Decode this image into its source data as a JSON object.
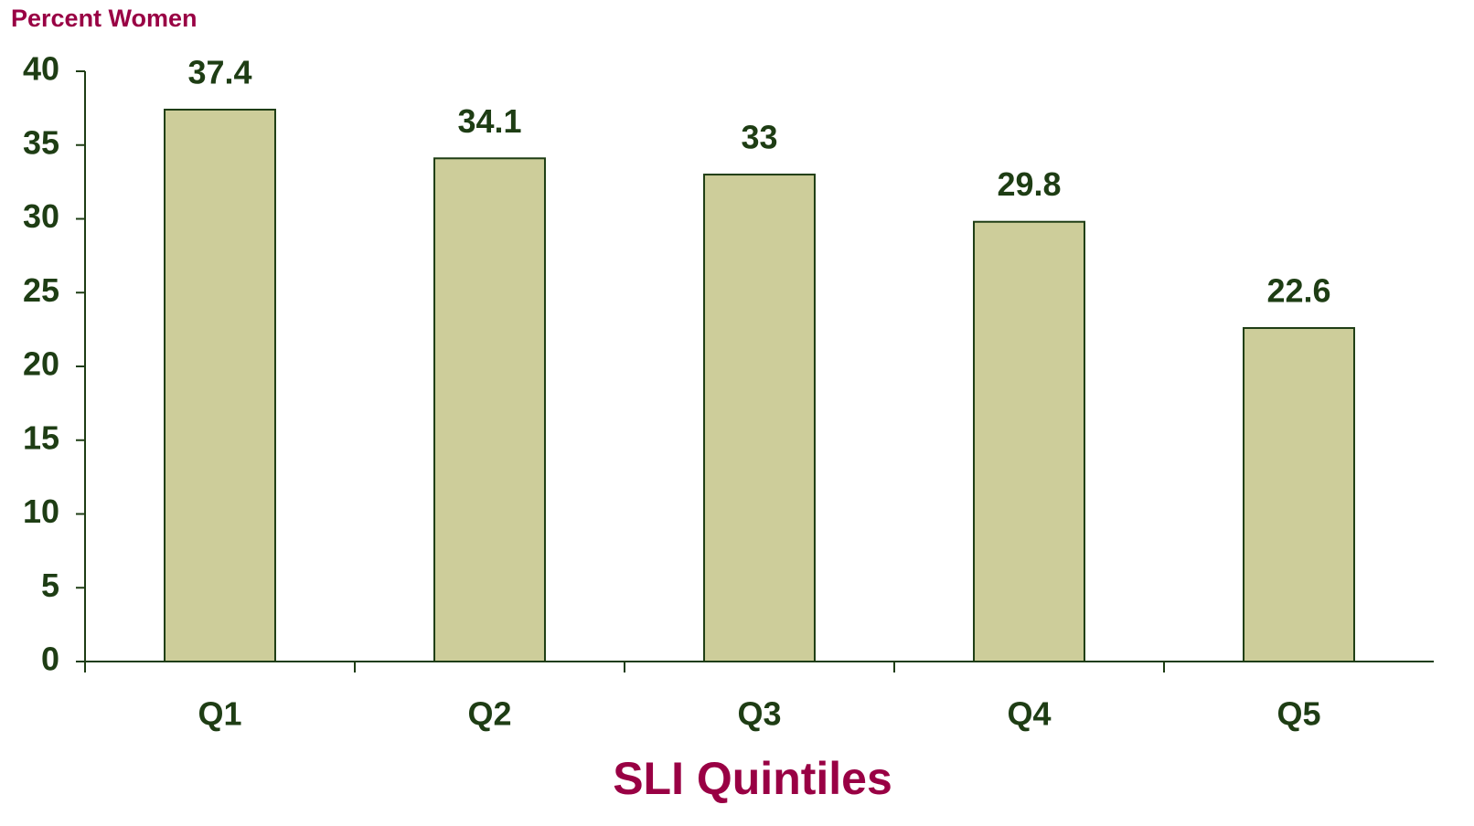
{
  "chart_data": {
    "type": "bar",
    "y_label": "Percent Women",
    "x_label": "SLI Quintiles",
    "categories": [
      "Q1",
      "Q2",
      "Q3",
      "Q4",
      "Q5"
    ],
    "values": [
      37.4,
      34.1,
      33,
      29.8,
      22.6
    ],
    "color": "#cdcd9a",
    "ylim": [
      0,
      40
    ],
    "yticks": [
      0,
      5,
      10,
      15,
      20,
      25,
      30,
      35,
      40
    ],
    "grid": false
  }
}
